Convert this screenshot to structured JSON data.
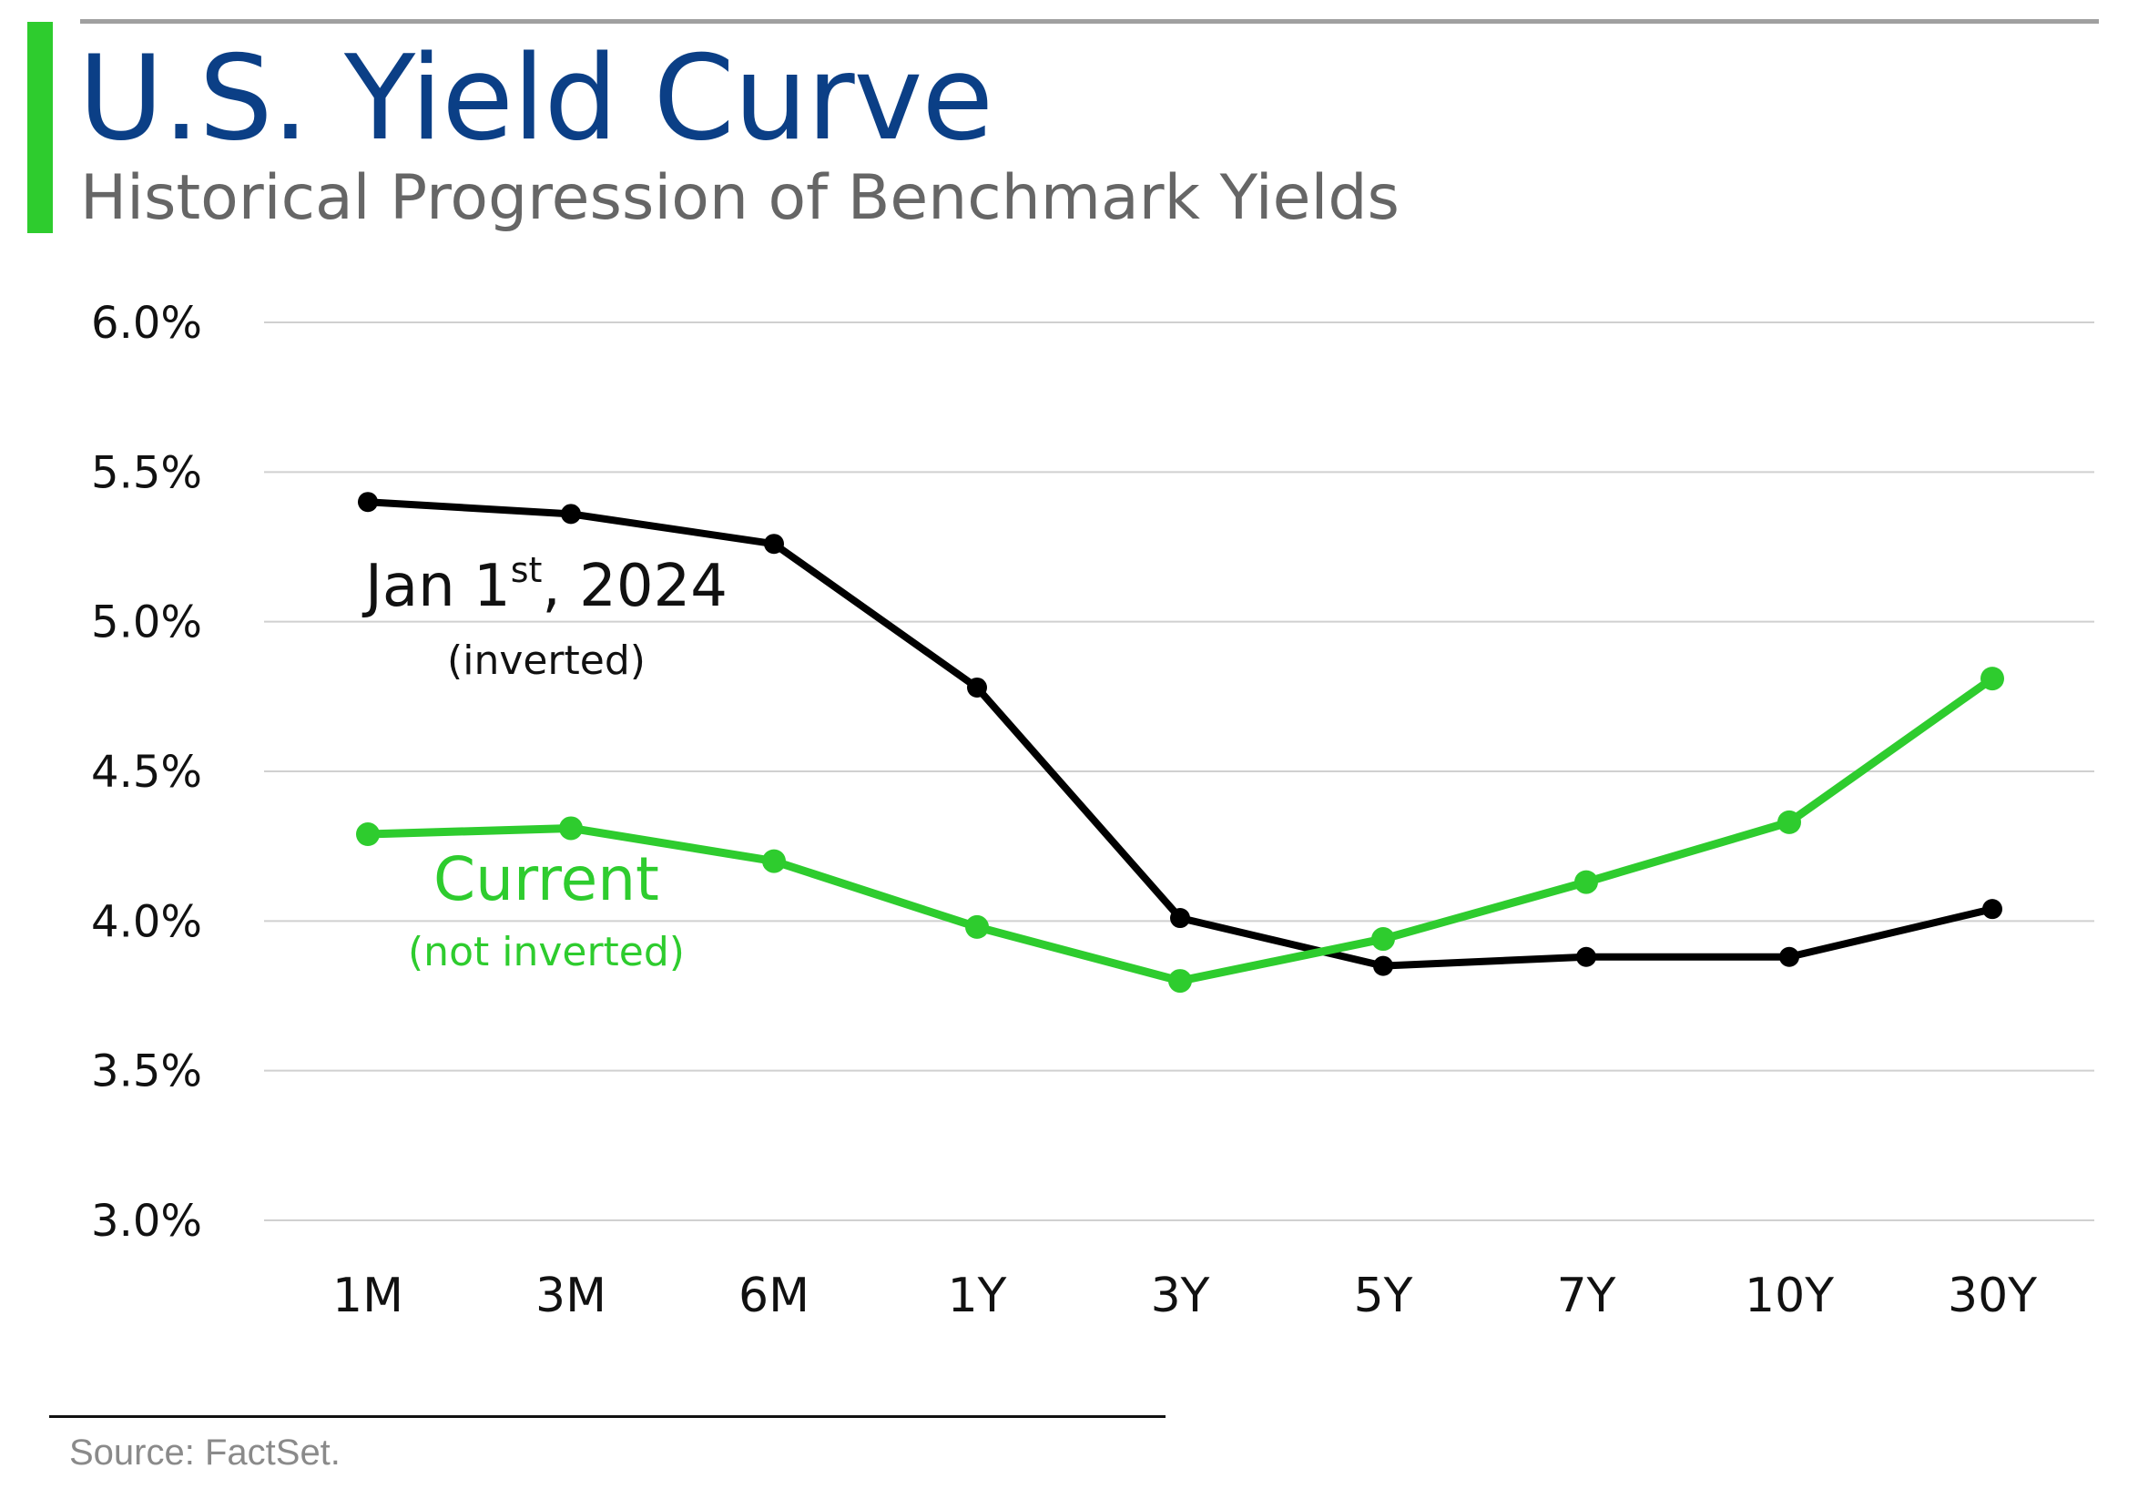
{
  "header": {
    "title": "U.S. Yield Curve",
    "subtitle": "Historical Progression of Benchmark Yields"
  },
  "footer": {
    "source": "Source: FactSet."
  },
  "colors": {
    "title": "#0b3f86",
    "accent": "#2ecc2e",
    "jan_series": "#000000",
    "current_series": "#2ecc2e",
    "grid": "#d0d0d0"
  },
  "annotations": {
    "jan_label_main": "Jan 1",
    "jan_label_sup": "st",
    "jan_label_year": ", 2024",
    "jan_label_note": "(inverted)",
    "current_label": "Current",
    "current_note": "(not inverted)"
  },
  "chart_data": {
    "type": "line",
    "title": "U.S. Yield Curve",
    "subtitle": "Historical Progression of Benchmark Yields",
    "xlabel": "",
    "ylabel": "",
    "categories": [
      "1M",
      "3M",
      "6M",
      "1Y",
      "3Y",
      "5Y",
      "7Y",
      "10Y",
      "30Y"
    ],
    "y_ticks": [
      "3.0%",
      "3.5%",
      "4.0%",
      "4.5%",
      "5.0%",
      "5.5%",
      "6.0%"
    ],
    "ylim": [
      3.0,
      6.0
    ],
    "grid": true,
    "legend": "none (series labeled inline)",
    "series": [
      {
        "name": "Jan 1st, 2024",
        "color": "#000000",
        "values": [
          5.4,
          5.36,
          5.26,
          4.78,
          4.01,
          3.85,
          3.88,
          3.88,
          4.04
        ]
      },
      {
        "name": "Current",
        "color": "#2ecc2e",
        "values": [
          4.29,
          4.31,
          4.2,
          3.98,
          3.8,
          3.94,
          4.13,
          4.33,
          4.81
        ]
      }
    ]
  }
}
